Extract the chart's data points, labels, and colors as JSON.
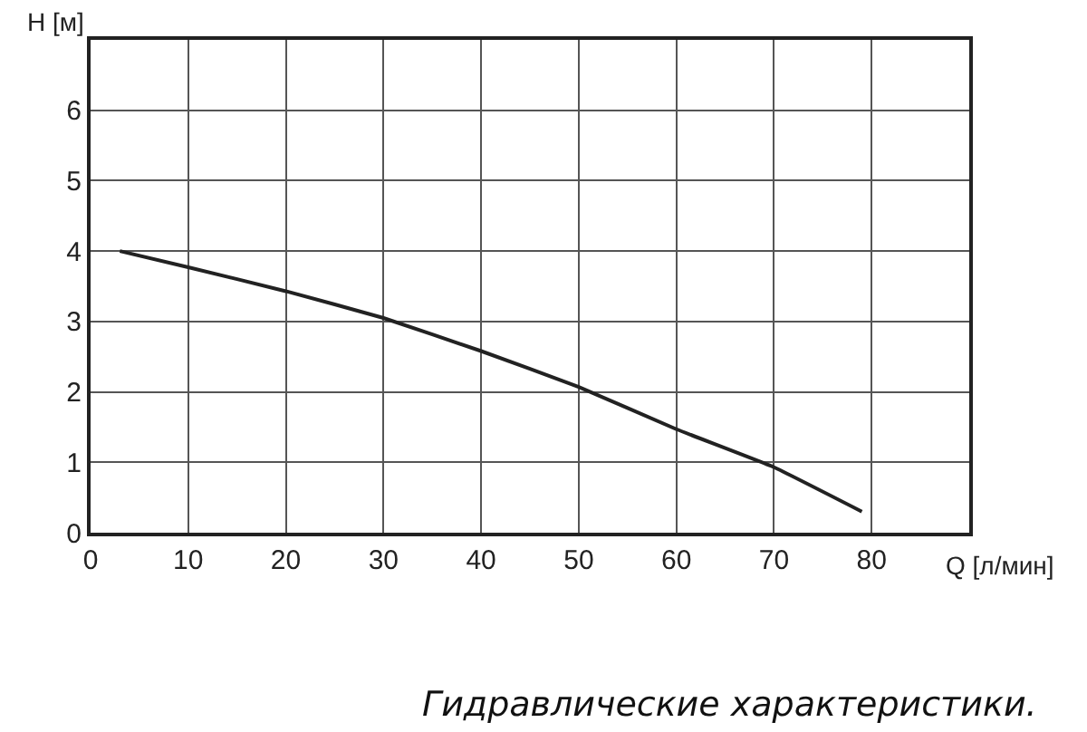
{
  "chart_data": {
    "type": "line",
    "xlabel": "Q [л/мин]",
    "ylabel": "H [м]",
    "annotations": [
      "Гидравлические характеристики."
    ],
    "series": [
      {
        "color": "#222222",
        "x": [
          3,
          10,
          20,
          30,
          40,
          50,
          60,
          70,
          79
        ],
        "values": [
          4.0,
          3.77,
          3.43,
          3.05,
          2.58,
          2.07,
          1.47,
          0.93,
          0.3
        ]
      }
    ],
    "xlim": [
      0,
      90
    ],
    "ylim": [
      0,
      7
    ],
    "xticks": [
      0,
      10,
      20,
      30,
      40,
      50,
      60,
      70,
      80
    ],
    "yticks": [
      0,
      1,
      2,
      3,
      4,
      5,
      6
    ],
    "grid": true,
    "marker": "none",
    "line_style": "solid"
  }
}
